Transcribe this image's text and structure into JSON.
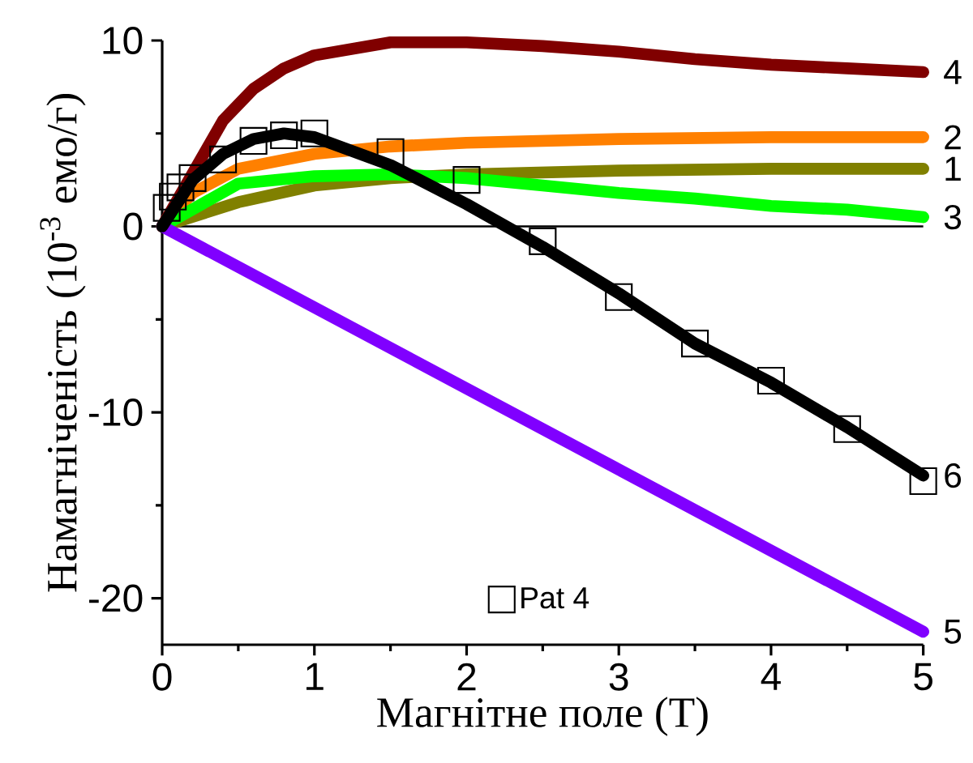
{
  "chart_data": {
    "type": "line",
    "xlabel": "Магнітне поле (T)",
    "ylabel": "Намагніченість (10$^{-3}$ емо/г)",
    "xlim": [
      0,
      5
    ],
    "ylim": [
      -22.5,
      10
    ],
    "xticks": [
      0,
      1,
      2,
      3,
      4,
      5
    ],
    "yticks": [
      -20,
      -10,
      0,
      10
    ],
    "grid": false,
    "legend": "bottom",
    "line_style": "solid",
    "ref_lines": [
      {
        "axis": "y",
        "value": 0,
        "color": "#000000"
      }
    ],
    "series": [
      {
        "name": "1",
        "color": "#808000",
        "x": [
          0,
          0.5,
          1,
          1.5,
          2,
          3,
          4,
          5
        ],
        "values": [
          0,
          1.3,
          2.2,
          2.6,
          2.8,
          3.0,
          3.1,
          3.1
        ]
      },
      {
        "name": "2",
        "color": "#ff8000",
        "x": [
          0,
          0.2,
          0.5,
          1,
          1.5,
          2,
          3,
          4,
          5
        ],
        "values": [
          0,
          1.8,
          3.1,
          3.9,
          4.3,
          4.5,
          4.7,
          4.8,
          4.8
        ]
      },
      {
        "name": "3",
        "color": "#00ff00",
        "x": [
          0,
          0.5,
          1,
          1.5,
          2,
          2.5,
          3,
          3.5,
          4,
          4.5,
          5
        ],
        "values": [
          0,
          2.3,
          2.7,
          2.8,
          2.6,
          2.2,
          1.8,
          1.5,
          1.1,
          0.9,
          0.5
        ]
      },
      {
        "name": "4",
        "color": "#800000",
        "x": [
          0,
          0.4,
          0.6,
          0.8,
          1,
          1.5,
          2,
          2.5,
          3,
          3.5,
          4,
          4.5,
          5
        ],
        "values": [
          0,
          5.7,
          7.4,
          8.5,
          9.2,
          9.9,
          9.9,
          9.7,
          9.4,
          9.0,
          8.7,
          8.5,
          8.3
        ]
      },
      {
        "name": "5",
        "color": "#8000ff",
        "x": [
          0,
          5
        ],
        "values": [
          0,
          -21.8
        ]
      },
      {
        "name": "6",
        "color": "#000000",
        "x": [
          0,
          0.2,
          0.4,
          0.6,
          0.8,
          1,
          1.5,
          2,
          2.5,
          3,
          3.5,
          4,
          4.5,
          5
        ],
        "values": [
          0,
          2.5,
          3.9,
          4.7,
          5.0,
          4.8,
          3.3,
          1.2,
          -1.1,
          -3.6,
          -6.3,
          -8.4,
          -10.8,
          -13.4
        ]
      },
      {
        "type": "scatter",
        "name": "Pat 4",
        "color": "#000000",
        "marker": "square",
        "x": [
          0.03,
          0.07,
          0.12,
          0.2,
          0.4,
          0.6,
          0.8,
          1,
          1.5,
          2,
          2.5,
          3,
          3.5,
          4,
          4.5,
          5
        ],
        "values": [
          1.0,
          1.6,
          2.1,
          2.6,
          3.6,
          4.6,
          4.9,
          5.0,
          4.0,
          2.5,
          -0.8,
          -3.8,
          -6.3,
          -8.3,
          -10.9,
          -13.7
        ]
      }
    ]
  }
}
